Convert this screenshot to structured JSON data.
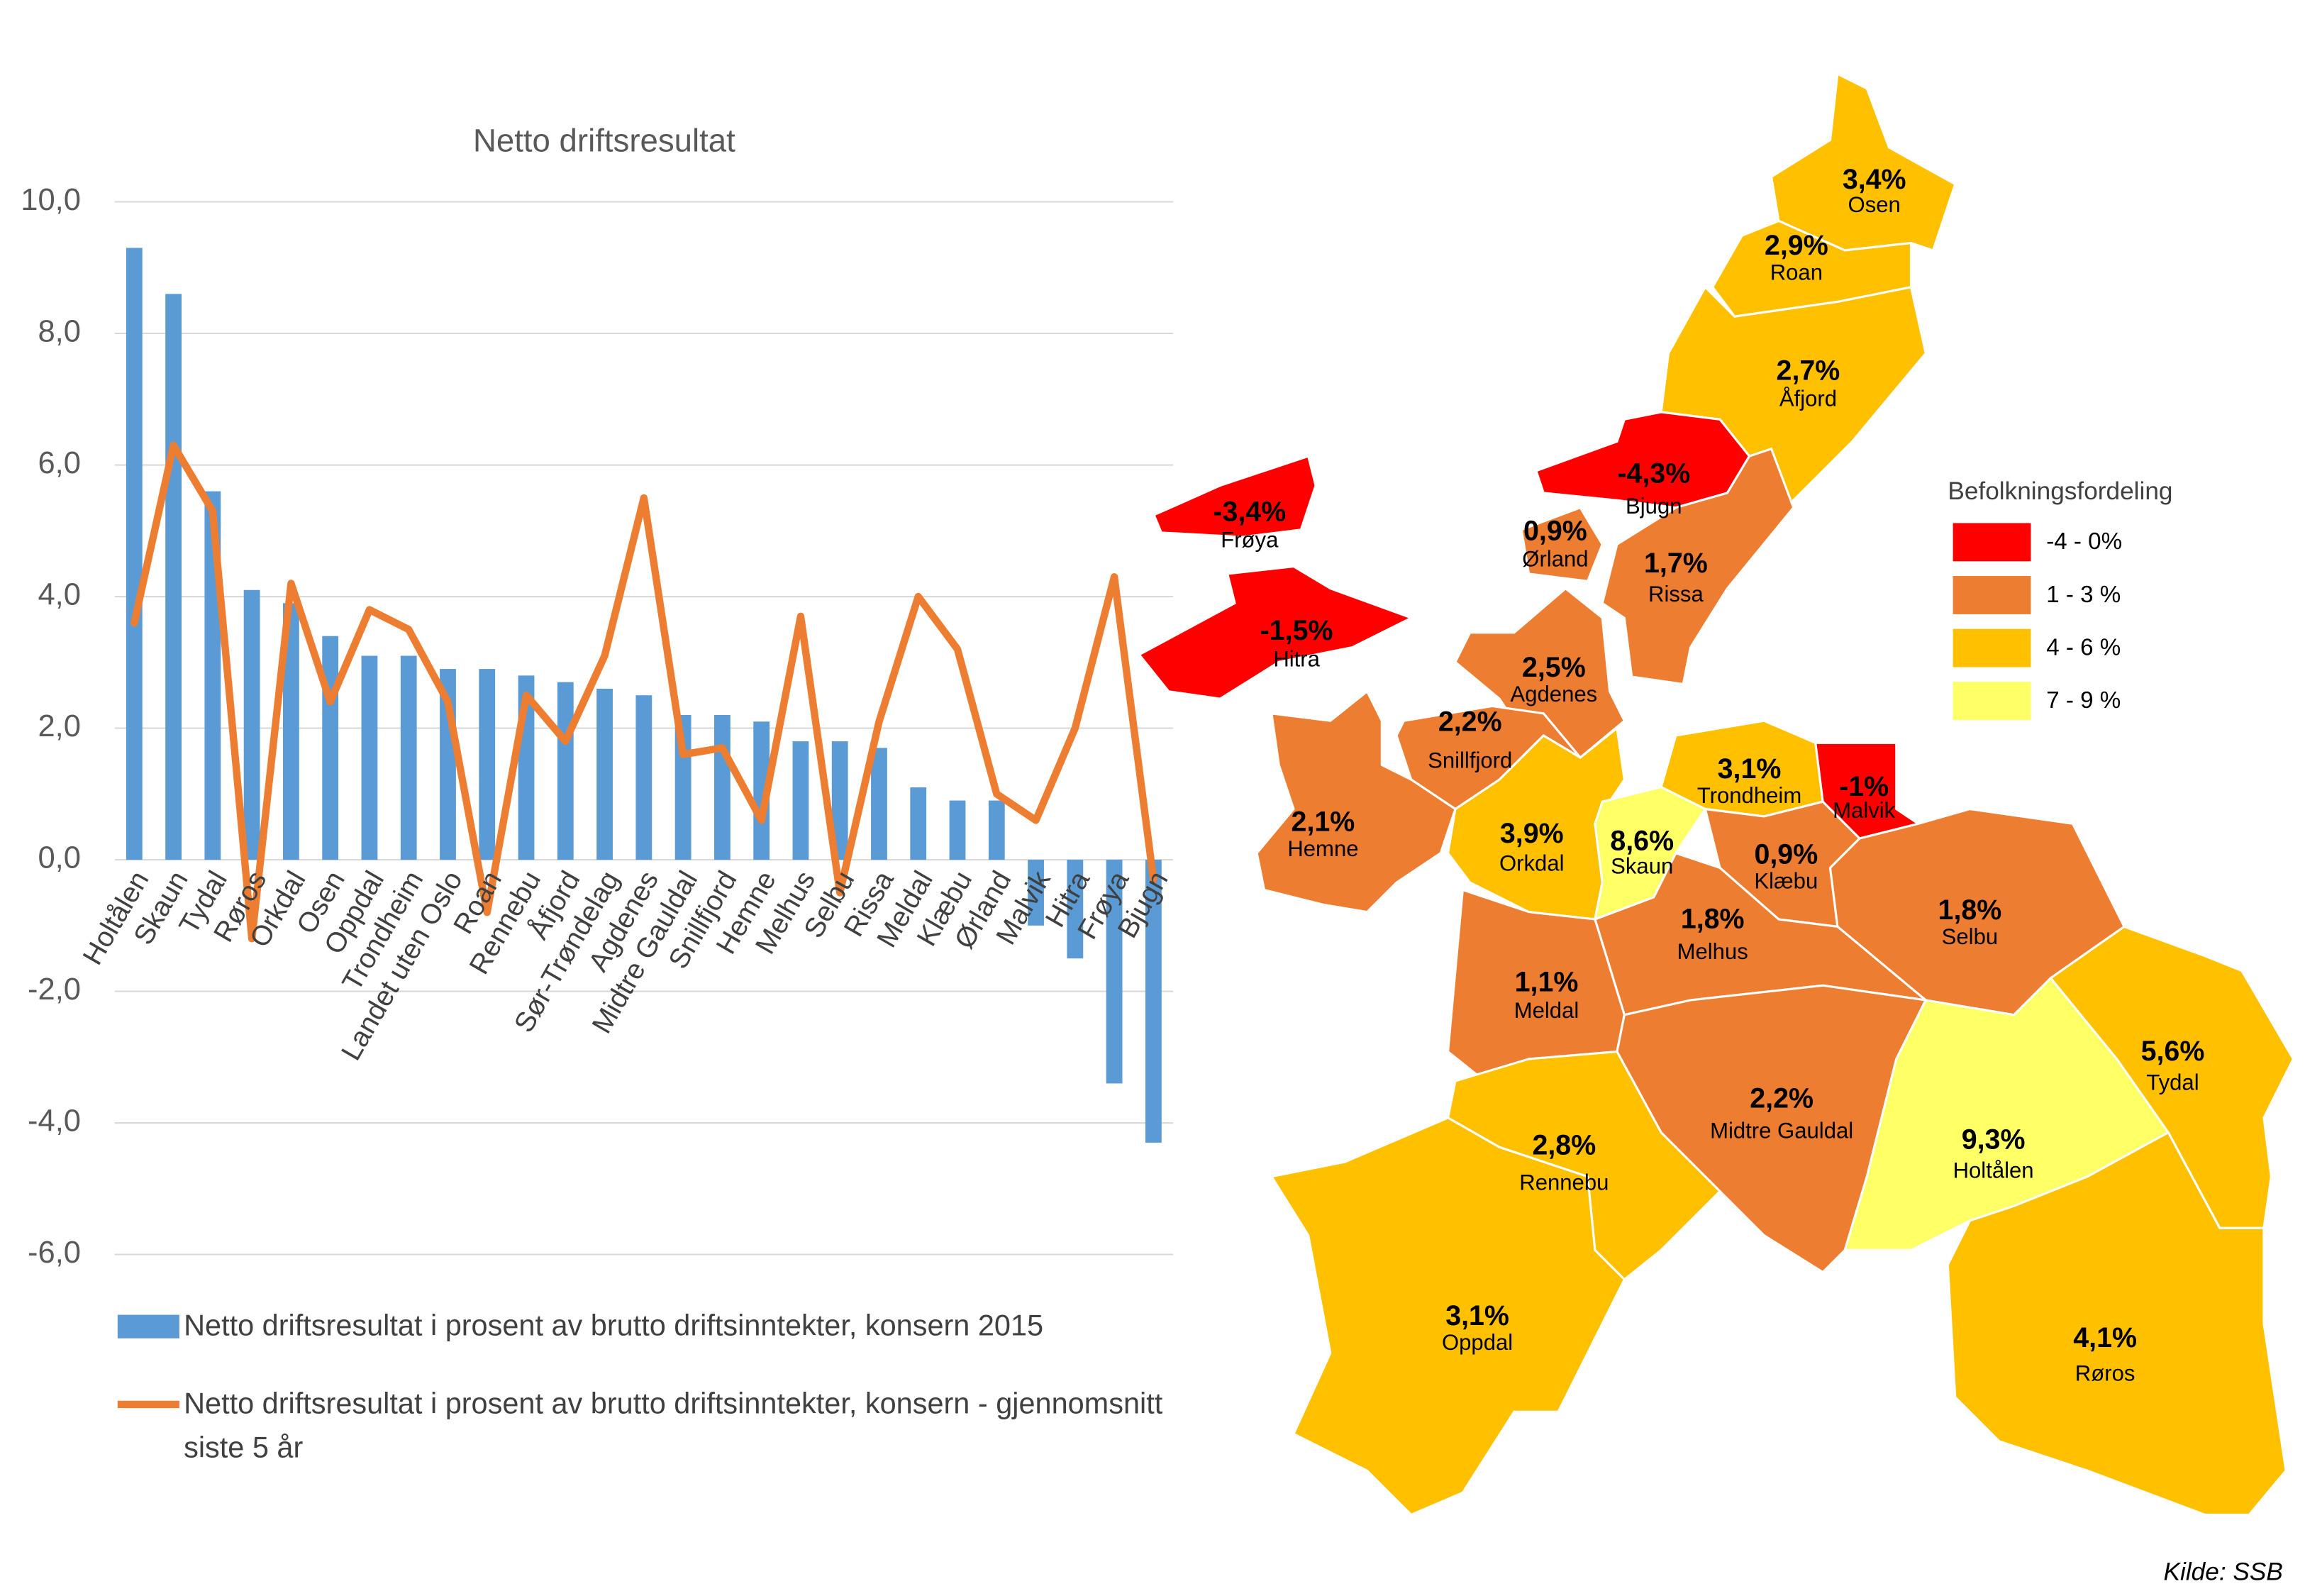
{
  "chart_data": {
    "type": "bar_line",
    "title": "Netto driftsresultat",
    "categories": [
      "Holtålen",
      "Skaun",
      "Tydal",
      "Røros",
      "Orkdal",
      "Osen",
      "Oppdal",
      "Trondheim",
      "Landet uten Oslo",
      "Roan",
      "Rennebu",
      "Åfjord",
      "Sør-Trøndelag",
      "Agdenes",
      "Midtre Gauldal",
      "Snillfjord",
      "Hemne",
      "Melhus",
      "Selbu",
      "Rissa",
      "Meldal",
      "Klæbu",
      "Ørland",
      "Malvik",
      "Hitra",
      "Frøya",
      "Bjugn"
    ],
    "series": [
      {
        "name": "Netto driftsresultat i prosent av brutto driftsinntekter, konsern 2015",
        "type": "bar",
        "color": "#5B9BD5",
        "values": [
          9.3,
          8.6,
          5.6,
          4.1,
          3.9,
          3.4,
          3.1,
          3.1,
          2.9,
          2.9,
          2.8,
          2.7,
          2.6,
          2.5,
          2.2,
          2.2,
          2.1,
          1.8,
          1.8,
          1.7,
          1.1,
          0.9,
          0.9,
          -1.0,
          -1.5,
          -3.4,
          -4.3
        ]
      },
      {
        "name": "Netto driftsresultat i prosent av brutto driftsinntekter, konsern  - gjennomsnitt siste 5 år",
        "type": "line",
        "color": "#ED7D31",
        "values": [
          3.6,
          6.3,
          5.3,
          -1.2,
          4.2,
          2.4,
          3.8,
          3.5,
          2.4,
          -0.8,
          2.5,
          1.8,
          3.1,
          5.5,
          1.6,
          1.7,
          0.6,
          3.7,
          -0.5,
          2.1,
          4.0,
          3.2,
          1.0,
          0.6,
          2.0,
          4.3,
          -0.3
        ]
      }
    ],
    "ylim": [
      -6,
      10
    ],
    "yticks": [
      {
        "value": 10,
        "label": "10,0"
      },
      {
        "value": 8,
        "label": "8,0"
      },
      {
        "value": 6,
        "label": "6,0"
      },
      {
        "value": 4,
        "label": "4,0"
      },
      {
        "value": 2,
        "label": "2,0"
      },
      {
        "value": 0,
        "label": "0,0"
      },
      {
        "value": -2,
        "label": "-2,0"
      },
      {
        "value": -4,
        "label": "-4,0"
      },
      {
        "value": -6,
        "label": "-6,0"
      }
    ],
    "grid": true,
    "legend": "bottom"
  },
  "map": {
    "legend_title": "Befolkningsfordeling",
    "legend": [
      {
        "label": "-4 - 0%",
        "color": "#FF0000"
      },
      {
        "label": "1 - 3 %",
        "color": "#ED7D31"
      },
      {
        "label": "4 - 6 %",
        "color": "#FFC000"
      },
      {
        "label": "7 - 9 %",
        "color": "#FFFF66"
      }
    ],
    "municipalities": [
      {
        "name": "Osen",
        "value_label": "3,4%",
        "color": "#FFC000"
      },
      {
        "name": "Roan",
        "value_label": "2,9%",
        "color": "#FFC000"
      },
      {
        "name": "Åfjord",
        "value_label": "2,7%",
        "color": "#FFC000"
      },
      {
        "name": "Bjugn",
        "value_label": "-4,3%",
        "color": "#FF0000"
      },
      {
        "name": "Ørland",
        "value_label": "0,9%",
        "color": "#ED7D31"
      },
      {
        "name": "Rissa",
        "value_label": "1,7%",
        "color": "#ED7D31"
      },
      {
        "name": "Frøya",
        "value_label": "-3,4%",
        "color": "#FF0000"
      },
      {
        "name": "Hitra",
        "value_label": "-1,5%",
        "color": "#FF0000"
      },
      {
        "name": "Agdenes",
        "value_label": "2,5%",
        "color": "#ED7D31"
      },
      {
        "name": "Snillfjord",
        "value_label": "2,2%",
        "color": "#ED7D31"
      },
      {
        "name": "Hemne",
        "value_label": "2,1%",
        "color": "#ED7D31"
      },
      {
        "name": "Orkdal",
        "value_label": "3,9%",
        "color": "#FFC000"
      },
      {
        "name": "Skaun",
        "value_label": "8,6%",
        "color": "#FFFF66"
      },
      {
        "name": "Trondheim",
        "value_label": "3,1%",
        "color": "#FFC000"
      },
      {
        "name": "Malvik",
        "value_label": "-1%",
        "color": "#FF0000"
      },
      {
        "name": "Klæbu",
        "value_label": "0,9%",
        "color": "#ED7D31"
      },
      {
        "name": "Selbu",
        "value_label": "1,8%",
        "color": "#ED7D31"
      },
      {
        "name": "Melhus",
        "value_label": "1,8%",
        "color": "#ED7D31"
      },
      {
        "name": "Meldal",
        "value_label": "1,1%",
        "color": "#ED7D31"
      },
      {
        "name": "Midtre Gauldal",
        "value_label": "2,2%",
        "color": "#ED7D31"
      },
      {
        "name": "Rennebu",
        "value_label": "2,8%",
        "color": "#FFC000"
      },
      {
        "name": "Oppdal",
        "value_label": "3,1%",
        "color": "#FFC000"
      },
      {
        "name": "Holtålen",
        "value_label": "9,3%",
        "color": "#FFFF66"
      },
      {
        "name": "Tydal",
        "value_label": "5,6%",
        "color": "#FFC000"
      },
      {
        "name": "Røros",
        "value_label": "4,1%",
        "color": "#FFC000"
      }
    ],
    "source": "Kilde: SSB"
  }
}
